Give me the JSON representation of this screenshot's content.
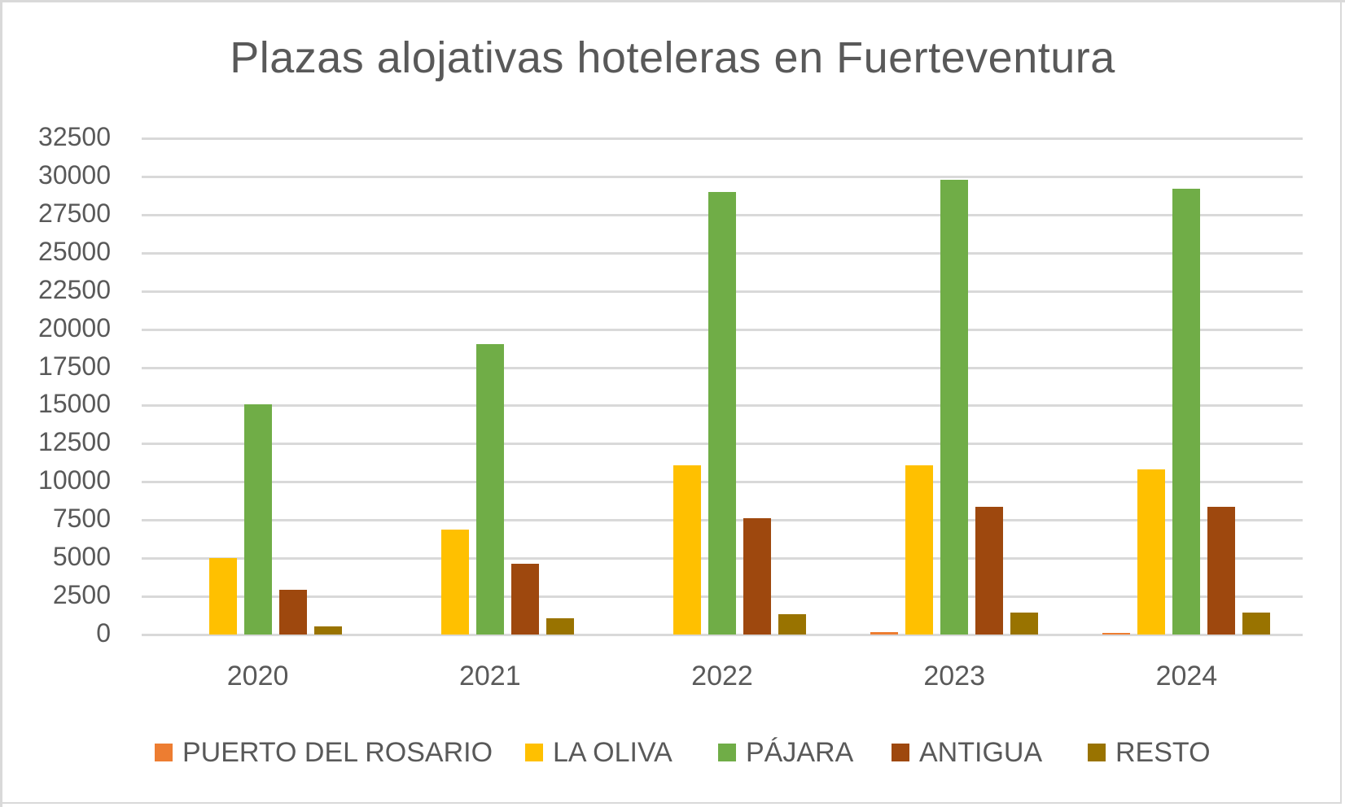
{
  "chart_data": {
    "type": "bar",
    "title": "Plazas alojativas hoteleras en Fuerteventura",
    "xlabel": "",
    "ylabel": "",
    "ylim": [
      0,
      32500
    ],
    "yticks": [
      0,
      2500,
      5000,
      7500,
      10000,
      12500,
      15000,
      17500,
      20000,
      22500,
      25000,
      27500,
      30000,
      32500
    ],
    "grid": true,
    "legend_position": "bottom",
    "categories": [
      "2020",
      "2021",
      "2022",
      "2023",
      "2024"
    ],
    "series": [
      {
        "name": "PUERTO DEL ROSARIO",
        "color": "#ED7D31",
        "values": [
          0,
          0,
          0,
          150,
          80
        ]
      },
      {
        "name": "LA OLIVA",
        "color": "#FFC000",
        "values": [
          5000,
          6850,
          11100,
          11100,
          10800
        ]
      },
      {
        "name": "PÁJARA",
        "color": "#70AD47",
        "values": [
          15100,
          19000,
          29000,
          29800,
          29200
        ]
      },
      {
        "name": "ANTIGUA",
        "color": "#9E480E",
        "values": [
          2950,
          4650,
          7600,
          8350,
          8350
        ]
      },
      {
        "name": "RESTO",
        "color": "#997300",
        "values": [
          550,
          1050,
          1350,
          1450,
          1450
        ]
      }
    ]
  }
}
